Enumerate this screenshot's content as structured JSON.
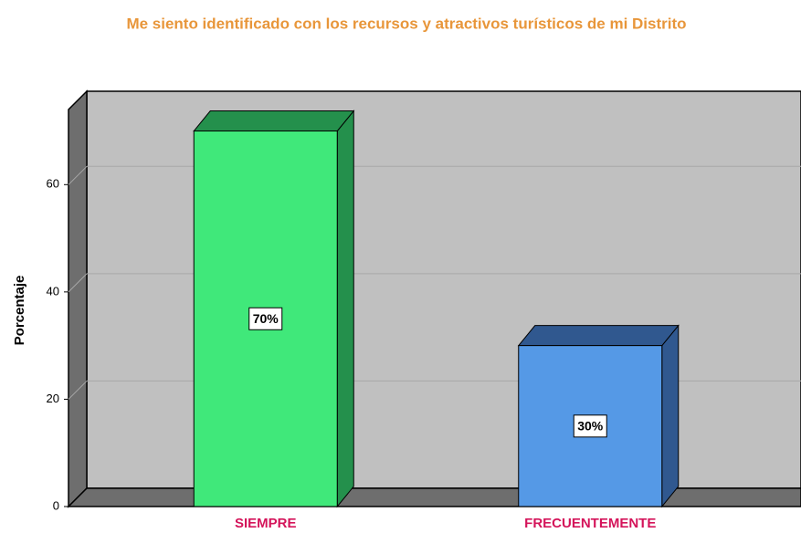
{
  "chart_data": {
    "type": "bar",
    "title": "Me siento identificado con los recursos y atractivos turísticos de mi Distrito",
    "y_label": "Porcentaje",
    "categories": [
      "SIEMPRE",
      "FRECUENTEMENTE"
    ],
    "values": [
      70,
      30
    ],
    "value_labels": [
      "70%",
      "30%"
    ],
    "colors": [
      "#40e87a",
      "#5599e6"
    ],
    "side_colors": [
      "#24904c",
      "#30588f"
    ],
    "ylim": [
      0,
      74
    ],
    "yticks": [
      0,
      20,
      40,
      60
    ],
    "grid": true
  }
}
